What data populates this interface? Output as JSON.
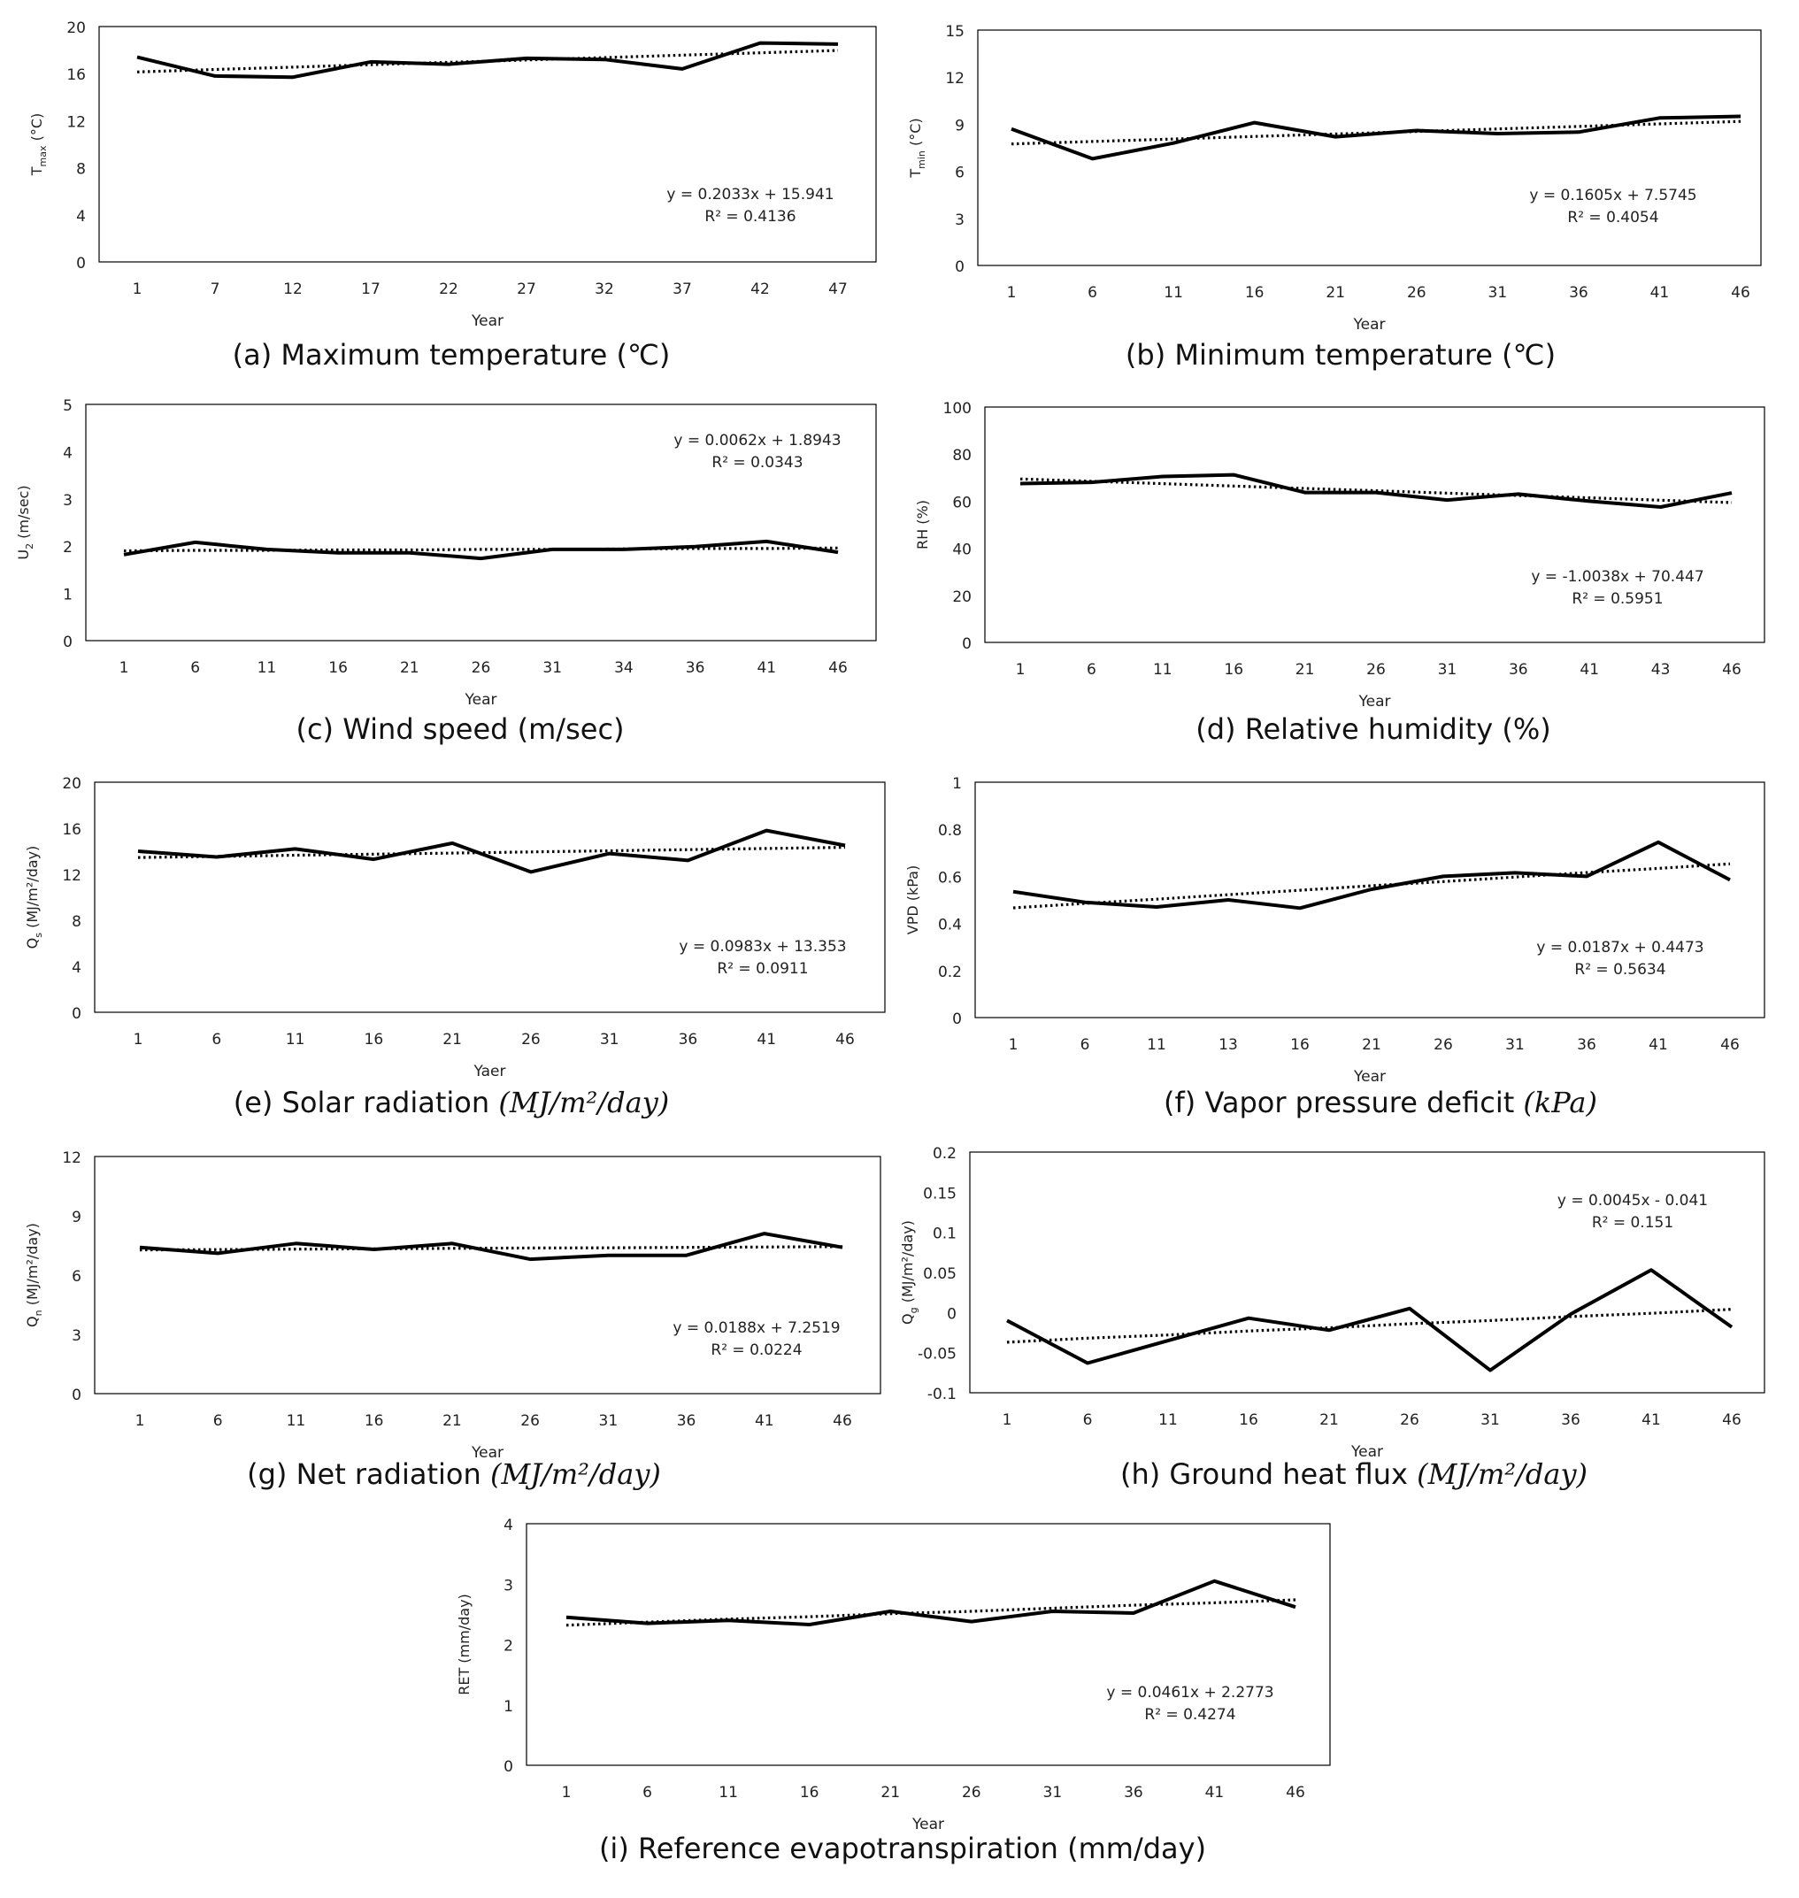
{
  "chart_data": [
    {
      "id": "a",
      "type": "line",
      "ylabel": "T",
      "ylabel_sub": "max",
      "ylabel_unit": " (°C)",
      "xlabel": "Year",
      "categories": [
        "1",
        "7",
        "12",
        "17",
        "22",
        "27",
        "32",
        "37",
        "42",
        "47"
      ],
      "yticks": [
        0,
        4,
        8,
        12,
        16,
        20
      ],
      "ylim": [
        0,
        20
      ],
      "series": [
        {
          "name": "observed",
          "style": "solid",
          "values": [
            17.4,
            15.8,
            15.7,
            17.0,
            16.8,
            17.3,
            17.2,
            16.4,
            18.6,
            18.5
          ]
        },
        {
          "name": "trend",
          "style": "dotted",
          "values": [
            16.14,
            16.35,
            16.55,
            16.76,
            16.96,
            17.16,
            17.36,
            17.57,
            17.77,
            17.97
          ]
        }
      ],
      "equation": "y = 0.2033x + 15.941",
      "r2": "R² = 0.4136",
      "caption_prefix": "(a) Maximum temperature (℃)",
      "caption_math": ""
    },
    {
      "id": "b",
      "type": "line",
      "ylabel": "T",
      "ylabel_sub": "min",
      "ylabel_unit": " (°C)",
      "xlabel": "Year",
      "categories": [
        "1",
        "6",
        "11",
        "16",
        "21",
        "26",
        "31",
        "36",
        "41",
        "46"
      ],
      "yticks": [
        0,
        3,
        6,
        9,
        12,
        15
      ],
      "ylim": [
        0,
        15
      ],
      "series": [
        {
          "name": "observed",
          "style": "solid",
          "values": [
            8.7,
            6.8,
            7.8,
            9.1,
            8.2,
            8.6,
            8.4,
            8.5,
            9.4,
            9.5
          ]
        },
        {
          "name": "trend",
          "style": "dotted",
          "values": [
            7.74,
            7.9,
            8.06,
            8.22,
            8.38,
            8.54,
            8.7,
            8.86,
            9.02,
            9.18
          ]
        }
      ],
      "equation": "y = 0.1605x + 7.5745",
      "r2": "R² = 0.4054",
      "caption_prefix": "(b) Minimum temperature (℃)",
      "caption_math": ""
    },
    {
      "id": "c",
      "type": "line",
      "ylabel": "U",
      "ylabel_sub": "2",
      "ylabel_unit": " (m/sec)",
      "xlabel": "Year",
      "categories": [
        "1",
        "6",
        "11",
        "16",
        "21",
        "26",
        "31",
        "34",
        "36",
        "41",
        "46"
      ],
      "yticks": [
        0,
        1,
        2,
        3,
        4,
        5
      ],
      "ylim": [
        0,
        5
      ],
      "series": [
        {
          "name": "observed",
          "style": "solid",
          "values": [
            1.82,
            2.08,
            1.93,
            1.86,
            1.86,
            1.74,
            1.93,
            1.93,
            1.99,
            2.1,
            1.87
          ]
        },
        {
          "name": "trend",
          "style": "dotted",
          "values": [
            1.9,
            1.91,
            1.91,
            1.92,
            1.92,
            1.93,
            1.93,
            1.94,
            1.95,
            1.95,
            1.96
          ]
        }
      ],
      "equation": "y = 0.0062x + 1.8943",
      "r2": "R² = 0.0343",
      "caption_prefix": "(c) Wind speed (m/sec)",
      "caption_math": ""
    },
    {
      "id": "d",
      "type": "line",
      "ylabel": "RH (%)",
      "ylabel_sub": "",
      "ylabel_unit": "",
      "xlabel": "Year",
      "categories": [
        "1",
        "6",
        "11",
        "16",
        "21",
        "26",
        "31",
        "36",
        "41",
        "43",
        "46"
      ],
      "yticks": [
        0,
        20,
        40,
        60,
        80,
        100
      ],
      "ylim": [
        0,
        100
      ],
      "series": [
        {
          "name": "observed",
          "style": "solid",
          "values": [
            67.5,
            68.0,
            70.5,
            71.2,
            63.7,
            63.7,
            60.5,
            63.0,
            60.0,
            57.5,
            63.5
          ]
        },
        {
          "name": "trend",
          "style": "dotted",
          "values": [
            69.44,
            68.44,
            67.44,
            66.43,
            65.43,
            64.43,
            63.42,
            62.42,
            61.42,
            60.41,
            59.41
          ]
        }
      ],
      "equation": "y = -1.0038x + 70.447",
      "r2": "R² = 0.5951",
      "caption_prefix": "(d) Relative humidity (%)",
      "caption_math": ""
    },
    {
      "id": "e",
      "type": "line",
      "ylabel": "Q",
      "ylabel_sub": "s",
      "ylabel_unit": " (MJ/m²/day)",
      "xlabel": "Yaer",
      "categories": [
        "1",
        "6",
        "11",
        "16",
        "21",
        "26",
        "31",
        "36",
        "41",
        "46"
      ],
      "yticks": [
        0,
        4,
        8,
        12,
        16,
        20
      ],
      "ylim": [
        0,
        20
      ],
      "series": [
        {
          "name": "observed",
          "style": "solid",
          "values": [
            14.0,
            13.5,
            14.2,
            13.3,
            14.7,
            12.2,
            13.8,
            13.2,
            15.8,
            14.5
          ]
        },
        {
          "name": "trend",
          "style": "dotted",
          "values": [
            13.45,
            13.55,
            13.65,
            13.75,
            13.84,
            13.94,
            14.04,
            14.14,
            14.24,
            14.34
          ]
        }
      ],
      "equation": "y = 0.0983x + 13.353",
      "r2": "R² = 0.0911",
      "caption_prefix": "(e) Solar radiation ",
      "caption_math": "(MJ/m²/day)"
    },
    {
      "id": "f",
      "type": "line",
      "ylabel": "VPD (kPa)",
      "ylabel_sub": "",
      "ylabel_unit": "",
      "xlabel": "Year",
      "categories": [
        "1",
        "6",
        "11",
        "13",
        "16",
        "21",
        "26",
        "31",
        "36",
        "41",
        "46"
      ],
      "yticks": [
        0,
        0.2,
        0.4,
        0.6,
        0.8,
        1
      ],
      "ylim": [
        0,
        1
      ],
      "series": [
        {
          "name": "observed",
          "style": "solid",
          "values": [
            0.535,
            0.49,
            0.47,
            0.5,
            0.465,
            0.545,
            0.6,
            0.615,
            0.6,
            0.745,
            0.585
          ]
        },
        {
          "name": "trend",
          "style": "dotted",
          "values": [
            0.466,
            0.485,
            0.503,
            0.522,
            0.541,
            0.56,
            0.578,
            0.597,
            0.616,
            0.634,
            0.653
          ]
        }
      ],
      "equation": "y = 0.0187x + 0.4473",
      "r2": "R² = 0.5634",
      "caption_prefix": "(f) Vapor pressure deficit ",
      "caption_math": "(kPa)"
    },
    {
      "id": "g",
      "type": "line",
      "ylabel": "Q",
      "ylabel_sub": "n",
      "ylabel_unit": " (MJ/m²/day)",
      "xlabel": "Year",
      "categories": [
        "1",
        "6",
        "11",
        "16",
        "21",
        "26",
        "31",
        "36",
        "41",
        "46"
      ],
      "yticks": [
        0,
        3,
        6,
        9,
        12
      ],
      "ylim": [
        0,
        12
      ],
      "series": [
        {
          "name": "observed",
          "style": "solid",
          "values": [
            7.4,
            7.1,
            7.6,
            7.3,
            7.6,
            6.8,
            7.0,
            7.0,
            8.1,
            7.4
          ]
        },
        {
          "name": "trend",
          "style": "dotted",
          "values": [
            7.27,
            7.29,
            7.31,
            7.33,
            7.35,
            7.37,
            7.38,
            7.4,
            7.42,
            7.44
          ]
        }
      ],
      "equation": "y = 0.0188x + 7.2519",
      "r2": "R² = 0.0224",
      "caption_prefix": "(g) Net radiation ",
      "caption_math": "(MJ/m²/day)"
    },
    {
      "id": "h",
      "type": "line",
      "ylabel": "Q",
      "ylabel_sub": "g",
      "ylabel_unit": " (MJ/m²/day)",
      "xlabel": "Year",
      "categories": [
        "1",
        "6",
        "11",
        "16",
        "21",
        "26",
        "31",
        "36",
        "41",
        "46"
      ],
      "yticks": [
        -0.1,
        -0.05,
        0,
        0.05,
        0.1,
        0.15,
        0.2
      ],
      "ylim": [
        -0.1,
        0.2
      ],
      "series": [
        {
          "name": "observed",
          "style": "solid",
          "values": [
            -0.01,
            -0.063,
            -0.035,
            -0.007,
            -0.022,
            0.005,
            -0.072,
            -0.002,
            0.053,
            -0.018
          ]
        },
        {
          "name": "trend",
          "style": "dotted",
          "values": [
            -0.037,
            -0.032,
            -0.028,
            -0.023,
            -0.019,
            -0.014,
            -0.01,
            -0.005,
            -0.001,
            0.004
          ]
        }
      ],
      "equation": "y = 0.0045x - 0.041",
      "r2": "R² = 0.151",
      "caption_prefix": "(h) Ground heat flux ",
      "caption_math": "(MJ/m²/day)"
    },
    {
      "id": "i",
      "type": "line",
      "ylabel": "RET (mm/day)",
      "ylabel_sub": "",
      "ylabel_unit": "",
      "xlabel": "Year",
      "categories": [
        "1",
        "6",
        "11",
        "16",
        "21",
        "26",
        "31",
        "36",
        "41",
        "46"
      ],
      "yticks": [
        0,
        1,
        2,
        3,
        4
      ],
      "ylim": [
        0,
        4
      ],
      "series": [
        {
          "name": "observed",
          "style": "solid",
          "values": [
            2.45,
            2.35,
            2.4,
            2.33,
            2.55,
            2.38,
            2.55,
            2.52,
            3.05,
            2.62
          ]
        },
        {
          "name": "trend",
          "style": "dotted",
          "values": [
            2.32,
            2.37,
            2.42,
            2.46,
            2.51,
            2.55,
            2.6,
            2.65,
            2.69,
            2.74
          ]
        }
      ],
      "equation": "y = 0.0461x + 2.2773",
      "r2": "R² = 0.4274",
      "caption_prefix": "(i) Reference evapotranspiration (mm/day)",
      "caption_math": ""
    }
  ]
}
